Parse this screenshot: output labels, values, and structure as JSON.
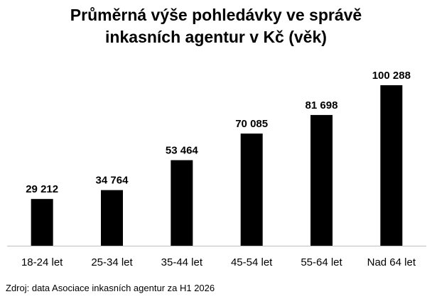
{
  "chart_data": {
    "type": "bar",
    "title_lines": [
      "Průměrná výše pohledávky ve správě",
      "inkasních agentur v Kč (věk)"
    ],
    "categories": [
      "18-24 let",
      "25-34 let",
      "35-44 let",
      "45-54 let",
      "55-64 let",
      "Nad 64 let"
    ],
    "values": [
      29212,
      34764,
      53464,
      70085,
      81698,
      100288
    ],
    "value_labels": [
      "29 212",
      "34 764",
      "53 464",
      "70 085",
      "81 698",
      "100 288"
    ],
    "ylim": [
      0,
      100288
    ],
    "bar_color": "#000000",
    "axis_color": "#bfbfbf",
    "grid": false,
    "legend": "none"
  },
  "source_text": "Zdroj: data Asociace inkasních agentur za H1 2026"
}
